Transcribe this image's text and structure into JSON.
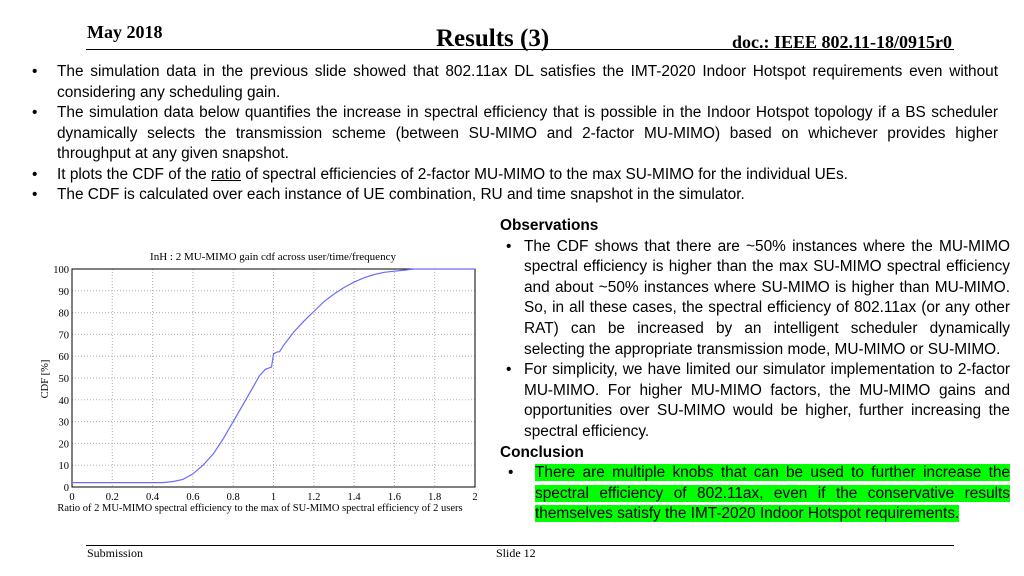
{
  "header": {
    "date": "May 2018",
    "title": "Results (3)",
    "doc": "doc.: IEEE 802.11-18/0915r0"
  },
  "bullets": [
    "The simulation data in the previous slide showed that 802.11ax DL satisfies the IMT-2020 Indoor Hotspot requirements even without considering any scheduling gain.",
    "The simulation data below quantifies the increase in spectral efficiency that is possible in the Indoor Hotspot topology if a BS scheduler dynamically selects the transmission scheme (between SU-MIMO and 2-factor MU-MIMO) based on whichever provides higher throughput at any given snapshot.",
    {
      "pre": "It plots the CDF of the ",
      "underlined": "ratio",
      "post": " of spectral efficiencies of 2-factor MU-MIMO to the max SU-MIMO for the individual UEs."
    },
    "The CDF is calculated over each instance of UE combination, RU and time snapshot in the simulator."
  ],
  "observations": {
    "heading": "Observations",
    "items": [
      "The CDF shows that there are ~50% instances where the MU-MIMO spectral efficiency is higher than the max SU-MIMO spectral efficiency and about ~50% instances where SU-MIMO is higher than MU-MIMO. So, in all these cases, the spectral efficiency of 802.11ax (or any other RAT) can be increased by an intelligent scheduler dynamically selecting the appropriate transmission mode, MU-MIMO or SU-MIMO.",
      "For simplicity, we have limited our simulator implementation to 2-factor MU-MIMO. For higher MU-MIMO factors, the MU-MIMO gains and opportunities over SU-MIMO would be higher, further increasing the spectral efficiency."
    ]
  },
  "conclusion": {
    "heading": "Conclusion",
    "items": [
      "There are multiple knobs that can be used to further increase the spectral efficiency of 802.11ax, even if the conservative results themselves satisfy the IMT-2020 Indoor Hotspot requirements."
    ],
    "highlight_color": "#00ff00"
  },
  "footer": {
    "submission": "Submission",
    "slide": "Slide 12"
  },
  "chart_data": {
    "type": "line",
    "title": "InH : 2 MU-MIMO gain cdf across user/time/frequency",
    "xlabel": "Ratio of 2 MU-MIMO spectral efficiency to the max of SU-MIMO spectral efficiency of 2 users",
    "ylabel": "CDF [%]",
    "xlim": [
      0,
      2
    ],
    "ylim": [
      0,
      100
    ],
    "xticks": [
      "0",
      "0.2",
      "0.4",
      "0.6",
      "0.8",
      "1",
      "1.2",
      "1.4",
      "1.6",
      "1.8",
      "2"
    ],
    "yticks": [
      "0",
      "10",
      "20",
      "30",
      "40",
      "50",
      "60",
      "70",
      "80",
      "90",
      "100"
    ],
    "grid": true,
    "line_color": "#6b6bff",
    "series": [
      {
        "x": [
          0,
          0.3,
          0.45,
          0.5,
          0.55,
          0.6,
          0.65,
          0.7,
          0.75,
          0.8,
          0.85,
          0.9,
          0.93,
          0.96,
          0.99,
          1.0,
          1.01,
          1.02,
          1.03,
          1.05,
          1.1,
          1.15,
          1.2,
          1.25,
          1.3,
          1.35,
          1.4,
          1.45,
          1.5,
          1.55,
          1.6,
          1.65,
          1.7,
          1.8,
          2.0
        ],
        "y": [
          2,
          2,
          2,
          2.5,
          3.5,
          6,
          10,
          15,
          22,
          30,
          38,
          46,
          51,
          54,
          55,
          61,
          61.5,
          62,
          62,
          65,
          71,
          76,
          80.5,
          85,
          88.5,
          91.5,
          94,
          96,
          97.5,
          98.5,
          99,
          99.5,
          100,
          100,
          100
        ]
      }
    ]
  }
}
